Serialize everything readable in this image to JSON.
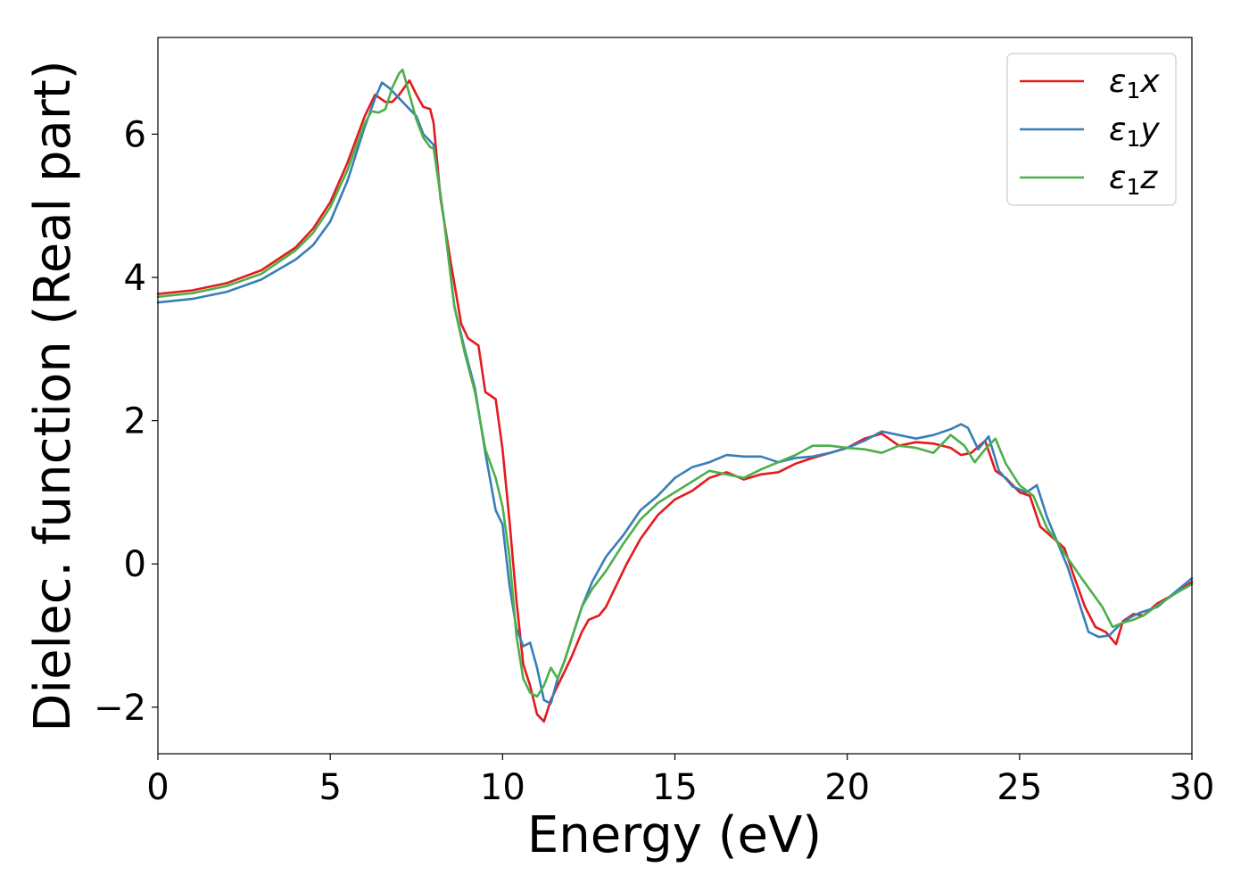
{
  "chart_data": {
    "type": "line",
    "xlabel": "Energy (eV)",
    "ylabel": "Dielec. function (Real part)",
    "xlim": [
      0,
      30
    ],
    "ylim": [
      -2.65,
      7.35
    ],
    "xticks": [
      0,
      5,
      10,
      15,
      20,
      25,
      30
    ],
    "xtick_labels": [
      "0",
      "5",
      "10",
      "15",
      "20",
      "25",
      "30"
    ],
    "yticks": [
      -2,
      0,
      2,
      4,
      6
    ],
    "ytick_labels": [
      "−2",
      "0",
      "2",
      "4",
      "6"
    ],
    "grid": false,
    "legend_position": "top-right",
    "series": [
      {
        "name": "ε1x",
        "legend": {
          "base": "ε",
          "sub": "1",
          "tail": "x"
        },
        "color": "#e41a1c",
        "x": [
          0,
          1,
          2,
          3,
          4,
          4.5,
          5,
          5.5,
          6,
          6.3,
          6.6,
          6.8,
          7.0,
          7.3,
          7.5,
          7.7,
          7.9,
          8.0,
          8.2,
          8.5,
          8.8,
          9.0,
          9.3,
          9.5,
          9.8,
          10.0,
          10.2,
          10.4,
          10.6,
          10.8,
          11.0,
          11.2,
          11.4,
          11.6,
          11.8,
          12.0,
          12.3,
          12.5,
          12.8,
          13.0,
          13.3,
          13.6,
          14.0,
          14.5,
          15.0,
          15.5,
          16.0,
          16.5,
          17.0,
          17.5,
          18.0,
          18.5,
          19.0,
          19.5,
          20.0,
          20.5,
          21.0,
          21.5,
          22.0,
          22.5,
          23.0,
          23.3,
          23.6,
          24.0,
          24.3,
          24.6,
          25.0,
          25.3,
          25.6,
          26.0,
          26.3,
          26.6,
          26.9,
          27.2,
          27.5,
          27.8,
          28.0,
          28.3,
          28.6,
          29.0,
          29.5,
          30.0
        ],
        "y": [
          3.77,
          3.82,
          3.92,
          4.1,
          4.42,
          4.68,
          5.05,
          5.6,
          6.25,
          6.55,
          6.45,
          6.45,
          6.55,
          6.75,
          6.55,
          6.38,
          6.35,
          6.15,
          5.1,
          4.2,
          3.35,
          3.15,
          3.05,
          2.4,
          2.3,
          1.6,
          0.6,
          -0.5,
          -1.4,
          -1.7,
          -2.1,
          -2.2,
          -1.9,
          -1.7,
          -1.5,
          -1.3,
          -0.95,
          -0.78,
          -0.72,
          -0.6,
          -0.3,
          0.0,
          0.35,
          0.68,
          0.9,
          1.02,
          1.2,
          1.28,
          1.18,
          1.25,
          1.28,
          1.4,
          1.48,
          1.55,
          1.62,
          1.75,
          1.82,
          1.65,
          1.7,
          1.68,
          1.62,
          1.52,
          1.55,
          1.72,
          1.3,
          1.2,
          1.0,
          0.95,
          0.52,
          0.35,
          0.22,
          -0.2,
          -0.6,
          -0.88,
          -0.95,
          -1.12,
          -0.8,
          -0.7,
          -0.72,
          -0.55,
          -0.42,
          -0.25
        ]
      },
      {
        "name": "ε1y",
        "legend": {
          "base": "ε",
          "sub": "1",
          "tail": "y"
        },
        "color": "#377eb8",
        "x": [
          0,
          1,
          2,
          3,
          4,
          4.5,
          5,
          5.5,
          6,
          6.3,
          6.5,
          6.7,
          6.9,
          7.1,
          7.3,
          7.5,
          7.7,
          7.9,
          8.0,
          8.3,
          8.6,
          8.9,
          9.2,
          9.5,
          9.8,
          10.0,
          10.2,
          10.4,
          10.6,
          10.8,
          11.0,
          11.2,
          11.4,
          11.6,
          11.8,
          12.0,
          12.3,
          12.6,
          13.0,
          13.5,
          14.0,
          14.5,
          15.0,
          15.5,
          16.0,
          16.5,
          17.0,
          17.5,
          18.0,
          18.5,
          19.0,
          19.5,
          20.0,
          20.5,
          21.0,
          21.5,
          22.0,
          22.5,
          23.0,
          23.3,
          23.5,
          23.8,
          24.1,
          24.4,
          24.8,
          25.2,
          25.5,
          25.8,
          26.1,
          26.4,
          26.7,
          27.0,
          27.3,
          27.6,
          27.9,
          28.2,
          28.5,
          29.0,
          29.5,
          30.0
        ],
        "y": [
          3.65,
          3.7,
          3.8,
          3.97,
          4.25,
          4.45,
          4.78,
          5.35,
          6.1,
          6.5,
          6.72,
          6.65,
          6.55,
          6.45,
          6.35,
          6.25,
          6.0,
          5.9,
          5.85,
          4.8,
          3.6,
          3.0,
          2.45,
          1.55,
          0.75,
          0.55,
          -0.3,
          -0.9,
          -1.15,
          -1.1,
          -1.45,
          -1.9,
          -1.95,
          -1.6,
          -1.35,
          -1.05,
          -0.6,
          -0.25,
          0.1,
          0.4,
          0.75,
          0.95,
          1.2,
          1.35,
          1.42,
          1.52,
          1.5,
          1.5,
          1.42,
          1.48,
          1.5,
          1.55,
          1.62,
          1.72,
          1.85,
          1.8,
          1.75,
          1.8,
          1.88,
          1.95,
          1.9,
          1.6,
          1.78,
          1.3,
          1.08,
          1.0,
          1.1,
          0.65,
          0.3,
          -0.05,
          -0.5,
          -0.95,
          -1.02,
          -1.0,
          -0.85,
          -0.75,
          -0.68,
          -0.6,
          -0.4,
          -0.2
        ]
      },
      {
        "name": "ε1z",
        "legend": {
          "base": "ε",
          "sub": "1",
          "tail": "z"
        },
        "color": "#4daf4a",
        "x": [
          0,
          1,
          2,
          3,
          4,
          4.5,
          5,
          5.5,
          6,
          6.2,
          6.4,
          6.6,
          6.8,
          7.0,
          7.1,
          7.3,
          7.5,
          7.7,
          7.9,
          8.0,
          8.3,
          8.6,
          8.9,
          9.2,
          9.5,
          9.8,
          10.0,
          10.2,
          10.4,
          10.6,
          10.8,
          11.0,
          11.2,
          11.4,
          11.6,
          11.8,
          12.0,
          12.3,
          12.6,
          13.0,
          13.5,
          14.0,
          14.5,
          15.0,
          15.5,
          16.0,
          16.5,
          17.0,
          17.5,
          18.0,
          18.5,
          19.0,
          19.5,
          20.0,
          20.5,
          21.0,
          21.5,
          22.0,
          22.5,
          23.0,
          23.4,
          23.7,
          24.0,
          24.3,
          24.6,
          25.0,
          25.4,
          25.8,
          26.1,
          26.4,
          26.8,
          27.1,
          27.4,
          27.7,
          28.0,
          28.3,
          28.6,
          29.0,
          29.5,
          30.0
        ],
        "y": [
          3.73,
          3.78,
          3.88,
          4.05,
          4.38,
          4.62,
          4.98,
          5.5,
          6.15,
          6.32,
          6.3,
          6.35,
          6.65,
          6.85,
          6.9,
          6.55,
          6.2,
          5.95,
          5.82,
          5.8,
          4.8,
          3.6,
          2.95,
          2.4,
          1.6,
          1.2,
          0.8,
          0.1,
          -1.0,
          -1.6,
          -1.8,
          -1.85,
          -1.7,
          -1.45,
          -1.6,
          -1.35,
          -1.05,
          -0.6,
          -0.35,
          -0.1,
          0.28,
          0.62,
          0.85,
          1.0,
          1.15,
          1.3,
          1.25,
          1.2,
          1.32,
          1.42,
          1.52,
          1.65,
          1.65,
          1.62,
          1.6,
          1.55,
          1.65,
          1.62,
          1.55,
          1.8,
          1.65,
          1.42,
          1.6,
          1.75,
          1.4,
          1.1,
          0.95,
          0.5,
          0.3,
          0.08,
          -0.2,
          -0.4,
          -0.6,
          -0.88,
          -0.82,
          -0.78,
          -0.72,
          -0.58,
          -0.42,
          -0.28
        ]
      }
    ]
  }
}
